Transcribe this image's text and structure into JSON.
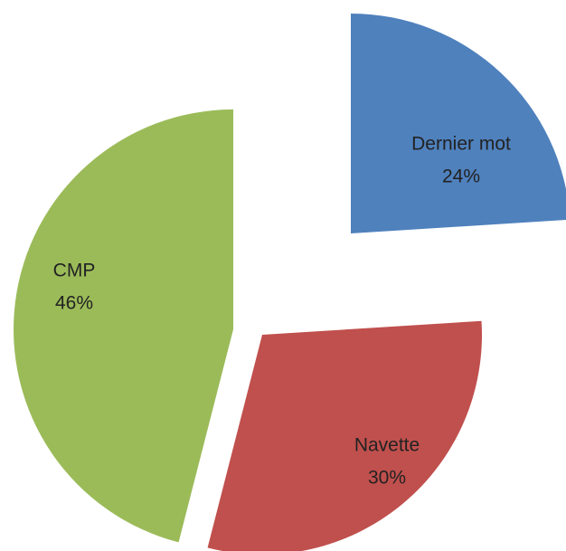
{
  "chart_data": {
    "type": "pie",
    "categories": [
      "Dernier mot",
      "Navette",
      "CMP"
    ],
    "values": [
      24,
      30,
      46
    ],
    "value_labels": [
      "24%",
      "30%",
      "46%"
    ],
    "colors": [
      "#4f81bd",
      "#c0504d",
      "#9bbb59"
    ]
  }
}
